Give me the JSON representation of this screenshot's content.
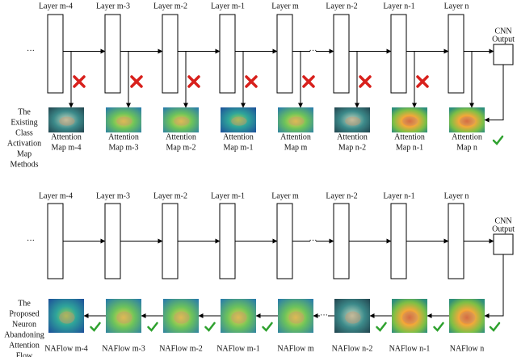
{
  "top": {
    "layers": [
      "Layer m-4",
      "Layer m-3",
      "Layer m-2",
      "Layer m-1",
      "Layer m",
      "Layer n-2",
      "Layer n-1",
      "Layer n"
    ],
    "cnn_output": [
      "CNN",
      "Output"
    ],
    "ellipsis": "···",
    "side_label": [
      "The",
      "Existing",
      "Class",
      "Activation",
      "Map",
      "Methods"
    ],
    "maps": [
      [
        "Attention",
        "Map m-4"
      ],
      [
        "Attention",
        "Map m-3"
      ],
      [
        "Attention",
        "Map m-2"
      ],
      [
        "Attention",
        "Map m-1"
      ],
      [
        "Attention",
        "Map m"
      ],
      [
        "Attention",
        "Map n-2"
      ],
      [
        "Attention",
        "Map n-1"
      ],
      [
        "Attention",
        "Map n"
      ]
    ]
  },
  "bottom": {
    "layers": [
      "Layer m-4",
      "Layer m-3",
      "Layer m-2",
      "Layer m-1",
      "Layer m",
      "Layer n-2",
      "Layer n-1",
      "Layer n"
    ],
    "cnn_output": [
      "CNN",
      "Output"
    ],
    "ellipsis": "···",
    "side_label": [
      "The",
      "Proposed",
      "Neuron",
      "Abandoning",
      "Attention",
      "Flow"
    ],
    "maps": [
      "NAFlow m-4",
      "NAFlow m-3",
      "NAFlow m-2",
      "NAFlow m-1",
      "NAFlow m",
      "NAFlow n-2",
      "NAFlow n-1",
      "NAFlow n"
    ]
  }
}
